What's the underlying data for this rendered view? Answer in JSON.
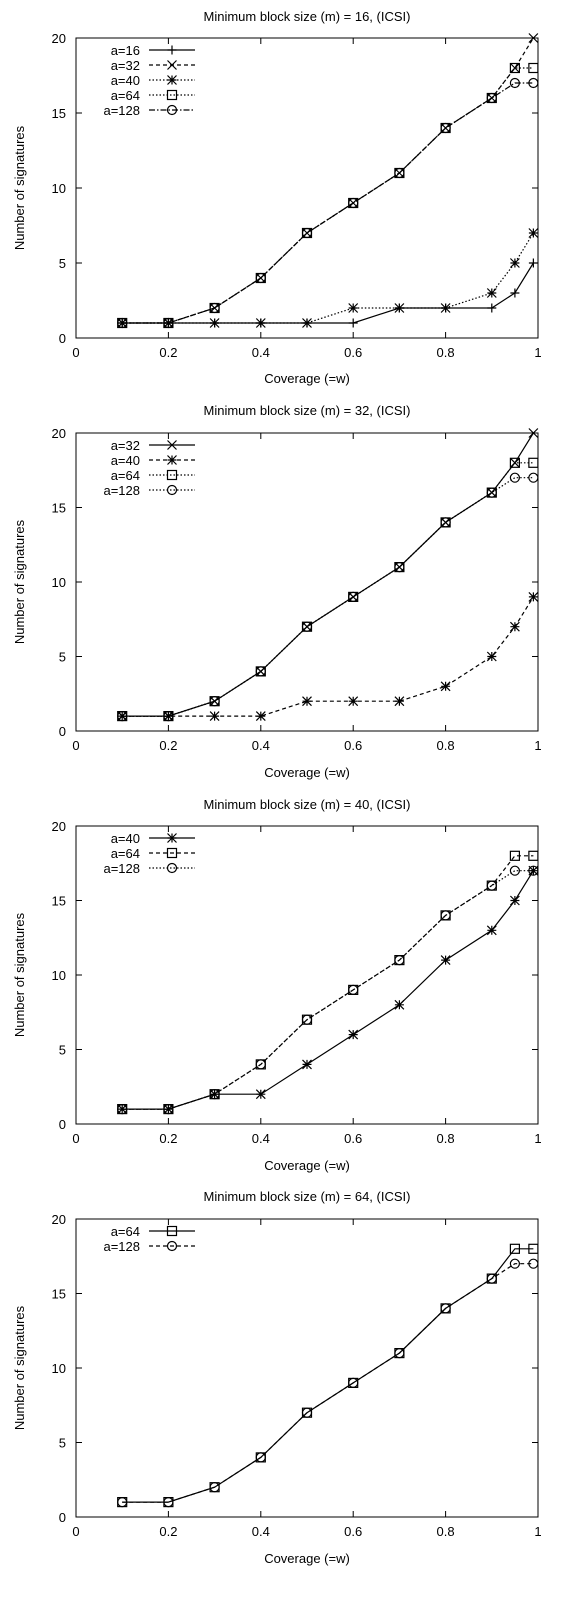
{
  "chart_data": [
    {
      "type": "line",
      "title": "Minimum block size (m) = 16, (ICSI)",
      "xlabel": "Coverage (=w)",
      "ylabel": "Number of signatures",
      "xlim": [
        0,
        1
      ],
      "ylim": [
        0,
        20
      ],
      "xticks": [
        "0",
        "0.2",
        "0.4",
        "0.6",
        "0.8",
        "1"
      ],
      "yticks": [
        "0",
        "5",
        "10",
        "15",
        "20"
      ],
      "grid": false,
      "legend": "top-left",
      "x": [
        0.1,
        0.2,
        0.3,
        0.4,
        0.5,
        0.6,
        0.7,
        0.8,
        0.9,
        0.95,
        0.99
      ],
      "series": [
        {
          "name": "a=16",
          "marker": "plus",
          "dash": "solid",
          "values": [
            1,
            1,
            1,
            1,
            1,
            1,
            2,
            2,
            2,
            3,
            5
          ]
        },
        {
          "name": "a=32",
          "marker": "cross",
          "dash": "dashed",
          "values": [
            1,
            1,
            2,
            4,
            7,
            9,
            11,
            14,
            16,
            18,
            20
          ]
        },
        {
          "name": "a=40",
          "marker": "star",
          "dash": "dotted",
          "values": [
            1,
            1,
            1,
            1,
            1,
            2,
            2,
            2,
            3,
            5,
            7
          ]
        },
        {
          "name": "a=64",
          "marker": "square",
          "dash": "dotted",
          "values": [
            1,
            1,
            2,
            4,
            7,
            9,
            11,
            14,
            16,
            18,
            18
          ]
        },
        {
          "name": "a=128",
          "marker": "circle",
          "dash": "dashdot",
          "values": [
            1,
            1,
            2,
            4,
            7,
            9,
            11,
            14,
            16,
            17,
            17
          ]
        }
      ]
    },
    {
      "type": "line",
      "title": "Minimum block size (m) = 32, (ICSI)",
      "xlabel": "Coverage (=w)",
      "ylabel": "Number of signatures",
      "xlim": [
        0,
        1
      ],
      "ylim": [
        0,
        20
      ],
      "xticks": [
        "0",
        "0.2",
        "0.4",
        "0.6",
        "0.8",
        "1"
      ],
      "yticks": [
        "0",
        "5",
        "10",
        "15",
        "20"
      ],
      "grid": false,
      "legend": "top-left",
      "x": [
        0.1,
        0.2,
        0.3,
        0.4,
        0.5,
        0.6,
        0.7,
        0.8,
        0.9,
        0.95,
        0.99
      ],
      "series": [
        {
          "name": "a=32",
          "marker": "cross",
          "dash": "solid",
          "values": [
            1,
            1,
            2,
            4,
            7,
            9,
            11,
            14,
            16,
            18,
            20
          ]
        },
        {
          "name": "a=40",
          "marker": "star",
          "dash": "dashed",
          "values": [
            1,
            1,
            1,
            1,
            2,
            2,
            2,
            3,
            5,
            7,
            9
          ]
        },
        {
          "name": "a=64",
          "marker": "square",
          "dash": "dotted",
          "values": [
            1,
            1,
            2,
            4,
            7,
            9,
            11,
            14,
            16,
            18,
            18
          ]
        },
        {
          "name": "a=128",
          "marker": "circle",
          "dash": "dotted",
          "values": [
            1,
            1,
            2,
            4,
            7,
            9,
            11,
            14,
            16,
            17,
            17
          ]
        }
      ]
    },
    {
      "type": "line",
      "title": "Minimum block size (m) = 40, (ICSI)",
      "xlabel": "Coverage (=w)",
      "ylabel": "Number of signatures",
      "xlim": [
        0,
        1
      ],
      "ylim": [
        0,
        20
      ],
      "xticks": [
        "0",
        "0.2",
        "0.4",
        "0.6",
        "0.8",
        "1"
      ],
      "yticks": [
        "0",
        "5",
        "10",
        "15",
        "20"
      ],
      "grid": false,
      "legend": "top-left",
      "x": [
        0.1,
        0.2,
        0.3,
        0.4,
        0.5,
        0.6,
        0.7,
        0.8,
        0.9,
        0.95,
        0.99
      ],
      "series": [
        {
          "name": "a=40",
          "marker": "star",
          "dash": "solid",
          "values": [
            1,
            1,
            2,
            2,
            4,
            6,
            8,
            11,
            13,
            15,
            17
          ]
        },
        {
          "name": "a=64",
          "marker": "square",
          "dash": "dashed",
          "values": [
            1,
            1,
            2,
            4,
            7,
            9,
            11,
            14,
            16,
            18,
            18
          ]
        },
        {
          "name": "a=128",
          "marker": "circle",
          "dash": "dotted",
          "values": [
            1,
            1,
            2,
            4,
            7,
            9,
            11,
            14,
            16,
            17,
            17
          ]
        }
      ]
    },
    {
      "type": "line",
      "title": "Minimum block size (m) = 64, (ICSI)",
      "xlabel": "Coverage (=w)",
      "ylabel": "Number of signatures",
      "xlim": [
        0,
        1
      ],
      "ylim": [
        0,
        20
      ],
      "xticks": [
        "0",
        "0.2",
        "0.4",
        "0.6",
        "0.8",
        "1"
      ],
      "yticks": [
        "0",
        "5",
        "10",
        "15",
        "20"
      ],
      "grid": false,
      "legend": "top-left",
      "x": [
        0.1,
        0.2,
        0.3,
        0.4,
        0.5,
        0.6,
        0.7,
        0.8,
        0.9,
        0.95,
        0.99
      ],
      "series": [
        {
          "name": "a=64",
          "marker": "square",
          "dash": "solid",
          "values": [
            1,
            1,
            2,
            4,
            7,
            9,
            11,
            14,
            16,
            18,
            18
          ]
        },
        {
          "name": "a=128",
          "marker": "circle",
          "dash": "dashed",
          "values": [
            1,
            1,
            2,
            4,
            7,
            9,
            11,
            14,
            16,
            17,
            17
          ]
        }
      ]
    }
  ]
}
